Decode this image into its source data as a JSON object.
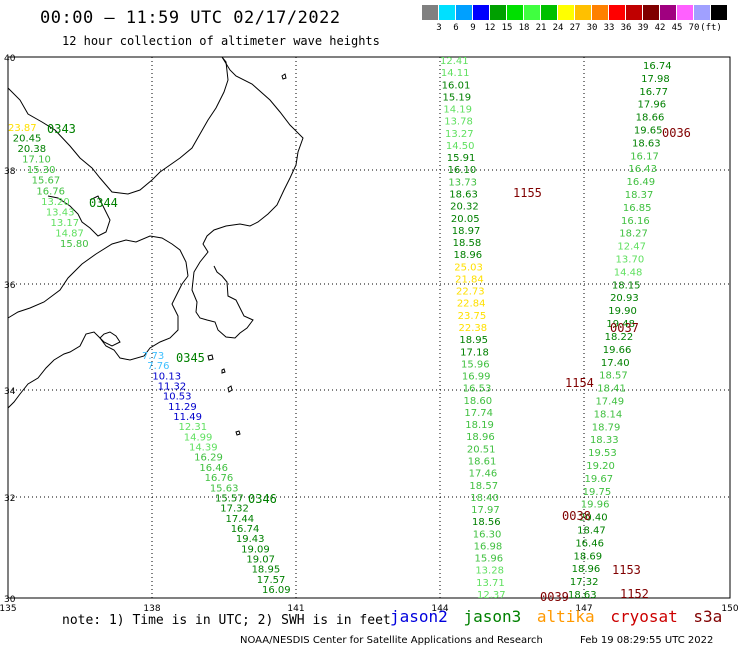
{
  "title": "00:00 – 11:59 UTC 02/17/2022",
  "subtitle": "12 hour collection of altimeter wave heights",
  "colorbar": {
    "colors": [
      "#808080",
      "#00e0ff",
      "#00a0ff",
      "#0000ff",
      "#00a000",
      "#00e000",
      "#40ff40",
      "#00c000",
      "#ffff00",
      "#ffc000",
      "#ff8000",
      "#ff0000",
      "#c00000",
      "#800000",
      "#a00080",
      "#ff60ff",
      "#a0a0ff",
      "#000000"
    ],
    "labels": [
      "3",
      "6",
      "9",
      "12",
      "15",
      "18",
      "21",
      "24",
      "27",
      "30",
      "33",
      "36",
      "39",
      "42",
      "45",
      "70",
      "(ft)"
    ]
  },
  "axes": {
    "lon_labels": [
      "135",
      "138",
      "141",
      "144",
      "147",
      "150"
    ],
    "lat_labels": [
      "40",
      "38",
      "36",
      "34",
      "32",
      "30"
    ]
  },
  "colors": {
    "jason2": "#0000dd",
    "jason3": "#008000",
    "altika": "#ff9900",
    "cryosat": "#cc0000",
    "s3a": "#800000"
  },
  "tracks": {
    "west": {
      "values": [
        "23.87",
        "20.45",
        "20.38",
        "17.10",
        "15.30",
        "15.67",
        "16.76",
        "13.20",
        "13.43",
        "13.17",
        "14.87",
        "15.80"
      ],
      "colors": [
        "#ffe000",
        "#008000",
        "#008000",
        "#40c040",
        "#40c040",
        "#40c040",
        "#40c040",
        "#60e060",
        "#60e060",
        "#60e060",
        "#60e060",
        "#40c040"
      ],
      "times": [
        "0343",
        "0344"
      ]
    },
    "south": {
      "values": [
        "7.73",
        "7.76",
        "10.13",
        "11.32",
        "10.53",
        "11.29",
        "11.49",
        "12.31",
        "14.99",
        "14.39",
        "16.29",
        "16.46",
        "16.76",
        "15.63",
        "15.57",
        "17.32",
        "17.44",
        "16.74",
        "19.43",
        "19.09",
        "19.07",
        "18.95",
        "17.57",
        "16.09"
      ],
      "colors": [
        "#40c0ff",
        "#40c0ff",
        "#0000cc",
        "#0000cc",
        "#0000cc",
        "#0000cc",
        "#0000cc",
        "#60e060",
        "#60e060",
        "#60e060",
        "#40c040",
        "#40c040",
        "#40c040",
        "#40c040",
        "#008000",
        "#008000",
        "#008000",
        "#008000",
        "#008000",
        "#008000",
        "#008000",
        "#008000",
        "#008000",
        "#008000"
      ],
      "times": [
        "0345",
        "0346"
      ]
    },
    "east_a": {
      "values": [
        "12.41",
        "14.11",
        "16.01",
        "15.19",
        "14.19",
        "13.78",
        "13.27",
        "14.50",
        "15.91",
        "16.10",
        "13.73",
        "18.63",
        "20.32",
        "20.05",
        "18.97",
        "18.58",
        "18.96",
        "25.03",
        "21.84",
        "22.73",
        "22.84",
        "23.75",
        "22.38",
        "18.95",
        "17.18",
        "15.96",
        "16.99",
        "16.53",
        "18.60",
        "17.74",
        "18.19",
        "18.96",
        "20.51",
        "18.61",
        "17.46",
        "18.57",
        "18.40",
        "17.97",
        "18.56",
        "16.30",
        "16.98",
        "15.96",
        "13.28",
        "13.71",
        "12.37"
      ],
      "colors": [
        "#60e060",
        "#60e060",
        "#008000",
        "#008000",
        "#60e060",
        "#60e060",
        "#60e060",
        "#60e060",
        "#008000",
        "#008000",
        "#40c040",
        "#008000",
        "#008000",
        "#008000",
        "#008000",
        "#008000",
        "#008000",
        "#ffe000",
        "#ffe000",
        "#ffe000",
        "#ffe000",
        "#ffe000",
        "#ffe000",
        "#008000",
        "#008000",
        "#40c040",
        "#40c040",
        "#40c040",
        "#40c040",
        "#40c040",
        "#40c040",
        "#40c040",
        "#40c040",
        "#40c040",
        "#40c040",
        "#40c040",
        "#40c040",
        "#40c040",
        "#008000",
        "#40c040",
        "#40c040",
        "#40c040",
        "#60e060",
        "#60e060",
        "#60e060"
      ],
      "times": [
        "1155",
        "1154",
        "0038",
        "0039"
      ]
    },
    "east_b": {
      "values": [
        "16.74",
        "17.98",
        "16.77",
        "17.96",
        "18.66",
        "19.65",
        "18.63",
        "16.17",
        "16.43",
        "16.49",
        "18.37",
        "16.85",
        "16.16",
        "18.27",
        "12.47",
        "13.70",
        "14.48",
        "18.15",
        "20.93",
        "19.90",
        "19.48",
        "18.22",
        "19.66",
        "17.40",
        "18.57",
        "18.41",
        "17.49",
        "18.14",
        "18.79",
        "18.33",
        "19.53",
        "19.20",
        "19.67",
        "19.75",
        "19.96",
        "20.40",
        "18.47",
        "16.46",
        "18.69",
        "18.96",
        "17.32",
        "18.63"
      ],
      "colors": [
        "#008000",
        "#008000",
        "#008000",
        "#008000",
        "#008000",
        "#008000",
        "#008000",
        "#40c040",
        "#40c040",
        "#40c040",
        "#40c040",
        "#40c040",
        "#40c040",
        "#40c040",
        "#60e060",
        "#60e060",
        "#60e060",
        "#008000",
        "#008000",
        "#008000",
        "#008000",
        "#008000",
        "#008000",
        "#008000",
        "#40c040",
        "#40c040",
        "#40c040",
        "#40c040",
        "#40c040",
        "#40c040",
        "#40c040",
        "#40c040",
        "#40c040",
        "#40c040",
        "#40c040",
        "#008000",
        "#008000",
        "#008000",
        "#008000",
        "#008000",
        "#008000",
        "#008000"
      ],
      "times": [
        "0036",
        "0037",
        "1153",
        "1152"
      ]
    }
  },
  "footer": {
    "note": "note: 1) Time is in UTC; 2) SWH is in feet",
    "sats": [
      "jason2",
      "jason3",
      "altika",
      "cryosat",
      "s3a"
    ],
    "credit": "NOAA/NESDIS Center for Satellite Applications and Research",
    "stamp": "Feb 19 08:29:55 UTC 2022"
  }
}
